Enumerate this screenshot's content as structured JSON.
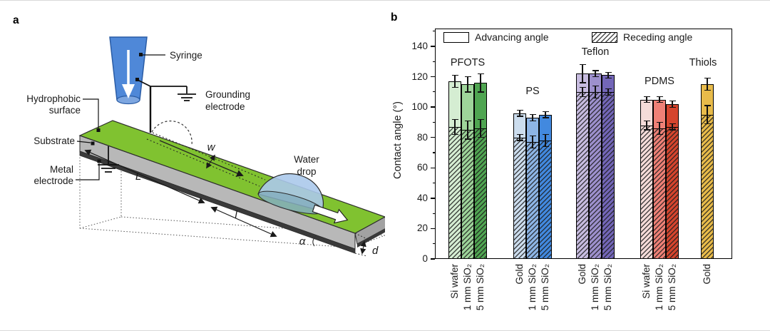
{
  "figure_labels": {
    "panel_a": "a",
    "panel_b": "b"
  },
  "panel_a": {
    "labels": {
      "syringe": "Syringe",
      "grounding_electrode_l1": "Grounding",
      "grounding_electrode_l2": "electrode",
      "hydrophobic_l1": "Hydrophobic",
      "hydrophobic_l2": "surface",
      "substrate": "Substrate",
      "metal_l1": "Metal",
      "metal_l2": "electrode",
      "water_drop_l1": "Water",
      "water_drop_l2": "drop",
      "dim_length": "L",
      "dim_track_width": "w",
      "dim_slide_distance": "l",
      "dim_tilt_angle": "α",
      "dim_thickness": "d"
    },
    "colors": {
      "hydrophobic_surface": "#80c230",
      "substrate": "#b8b8b8",
      "metal_electrode": "#3a3a3a",
      "syringe": "#4f88d8",
      "water_drop": "#abc9eb"
    }
  },
  "chart_data": {
    "type": "bar",
    "title": "",
    "ylabel": "Contact angle (°)",
    "ylim": [
      0,
      150
    ],
    "yticks": [
      0,
      20,
      40,
      60,
      80,
      100,
      120,
      140
    ],
    "grid": false,
    "legend_position": "top",
    "legend": [
      {
        "label": "Advancing angle",
        "style": "open"
      },
      {
        "label": "Receding angle",
        "style": "hatched"
      }
    ],
    "groups": [
      {
        "material": "PFOTS",
        "colors": [
          "#d5edd2",
          "#9ed49a",
          "#4fa551"
        ],
        "bars": [
          {
            "substrate": "Si wafer",
            "advancing": 117,
            "advancing_err": 4,
            "receding": 87,
            "receding_err": 5
          },
          {
            "substrate": "1 mm SiO₂",
            "advancing": 115,
            "advancing_err": 5,
            "receding": 85,
            "receding_err": 6
          },
          {
            "substrate": "5 mm SiO₂",
            "advancing": 116,
            "advancing_err": 6,
            "receding": 86,
            "receding_err": 6
          }
        ]
      },
      {
        "material": "PS",
        "colors": [
          "#ccddee",
          "#8db5e6",
          "#4289df"
        ],
        "bars": [
          {
            "substrate": "Gold",
            "advancing": 96,
            "advancing_err": 2,
            "receding": 80,
            "receding_err": 2
          },
          {
            "substrate": "1 mm SiO₂",
            "advancing": 93,
            "advancing_err": 2,
            "receding": 77,
            "receding_err": 4
          },
          {
            "substrate": "5 mm SiO₂",
            "advancing": 95,
            "advancing_err": 2,
            "receding": 78,
            "receding_err": 4
          }
        ]
      },
      {
        "material": "Teflon",
        "colors": [
          "#c7bce0",
          "#9d90cd",
          "#7366b8"
        ],
        "bars": [
          {
            "substrate": "Gold",
            "advancing": 122,
            "advancing_err": 6,
            "receding": 110,
            "receding_err": 3
          },
          {
            "substrate": "1 mm SiO₂",
            "advancing": 122,
            "advancing_err": 2,
            "receding": 110,
            "receding_err": 4
          },
          {
            "substrate": "5 mm SiO₂",
            "advancing": 121,
            "advancing_err": 2,
            "receding": 110,
            "receding_err": 2
          }
        ]
      },
      {
        "material": "PDMS",
        "colors": [
          "#f5dcd9",
          "#ef8076",
          "#d5452e"
        ],
        "bars": [
          {
            "substrate": "Si wafer",
            "advancing": 105,
            "advancing_err": 2,
            "receding": 88,
            "receding_err": 3
          },
          {
            "substrate": "1 mm SiO₂",
            "advancing": 105,
            "advancing_err": 2,
            "receding": 86,
            "receding_err": 4
          },
          {
            "substrate": "5 mm SiO₂",
            "advancing": 102,
            "advancing_err": 2,
            "receding": 87,
            "receding_err": 2
          }
        ]
      },
      {
        "material": "Thiols",
        "colors": [
          "#e8bb4a"
        ],
        "bars": [
          {
            "substrate": "Gold",
            "advancing": 115,
            "advancing_err": 4,
            "receding": 95,
            "receding_err": 6
          }
        ]
      }
    ]
  }
}
